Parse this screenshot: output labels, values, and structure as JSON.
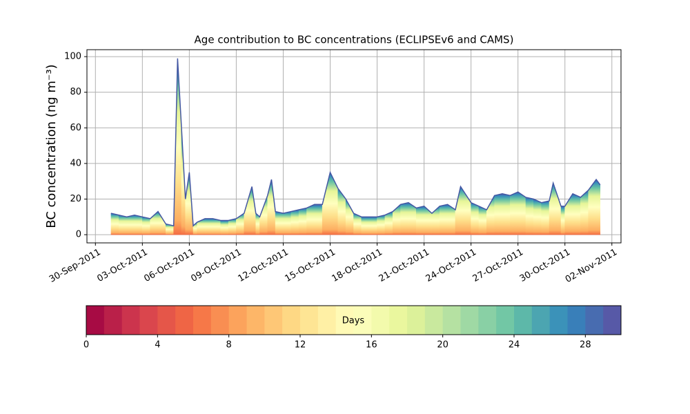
{
  "chart_data": {
    "type": "area",
    "title": "Age contribution to BC concentrations (ECLIPSEv6 and CAMS)",
    "y_label": "BC concentration (ng m⁻³)",
    "x": [
      "2011-10-01T00:00",
      "2011-10-01T12:00",
      "2011-10-02T00:00",
      "2011-10-02T12:00",
      "2011-10-03T00:00",
      "2011-10-03T12:00",
      "2011-10-04T00:00",
      "2011-10-04T12:00",
      "2011-10-05T00:00",
      "2011-10-05T06:00",
      "2011-10-05T12:00",
      "2011-10-05T18:00",
      "2011-10-06T00:00",
      "2011-10-06T06:00",
      "2011-10-06T12:00",
      "2011-10-07T00:00",
      "2011-10-07T12:00",
      "2011-10-08T00:00",
      "2011-10-08T12:00",
      "2011-10-09T00:00",
      "2011-10-09T12:00",
      "2011-10-10T00:00",
      "2011-10-10T06:00",
      "2011-10-10T12:00",
      "2011-10-11T00:00",
      "2011-10-11T06:00",
      "2011-10-11T12:00",
      "2011-10-12T00:00",
      "2011-10-12T12:00",
      "2011-10-13T00:00",
      "2011-10-13T12:00",
      "2011-10-14T00:00",
      "2011-10-14T12:00",
      "2011-10-15T00:00",
      "2011-10-15T12:00",
      "2011-10-16T00:00",
      "2011-10-16T12:00",
      "2011-10-17T00:00",
      "2011-10-17T12:00",
      "2011-10-18T00:00",
      "2011-10-18T12:00",
      "2011-10-19T00:00",
      "2011-10-19T12:00",
      "2011-10-20T00:00",
      "2011-10-20T12:00",
      "2011-10-21T00:00",
      "2011-10-21T12:00",
      "2011-10-22T00:00",
      "2011-10-22T12:00",
      "2011-10-23T00:00",
      "2011-10-23T08:00",
      "2011-10-24T00:00",
      "2011-10-24T12:00",
      "2011-10-25T00:00",
      "2011-10-25T12:00",
      "2011-10-26T00:00",
      "2011-10-26T12:00",
      "2011-10-27T00:00",
      "2011-10-27T12:00",
      "2011-10-28T00:00",
      "2011-10-28T12:00",
      "2011-10-29T00:00",
      "2011-10-29T06:00",
      "2011-10-29T18:00",
      "2011-10-30T00:00",
      "2011-10-30T12:00",
      "2011-10-31T00:00",
      "2011-10-31T12:00",
      "2011-11-01T00:00",
      "2011-11-01T06:00"
    ],
    "values": [
      12,
      11,
      10,
      11,
      10,
      9,
      13,
      6,
      5,
      99,
      60,
      20,
      35,
      5,
      7,
      9,
      9,
      8,
      8,
      9,
      12,
      27,
      12,
      10,
      22,
      31,
      13,
      12,
      13,
      14,
      15,
      17,
      17,
      35,
      26,
      20,
      12,
      10,
      10,
      10,
      11,
      13,
      17,
      18,
      15,
      16,
      12,
      16,
      17,
      14,
      27,
      18,
      16,
      14,
      22,
      23,
      22,
      24,
      21,
      20,
      18,
      19,
      29,
      16,
      16,
      23,
      21,
      25,
      31,
      28
    ],
    "line_color": "#4357a3",
    "xlim": [
      "2011-09-29T11:00",
      "2011-11-02T14:00"
    ],
    "xticks": [
      {
        "value": "2011-09-30T00:00",
        "label": "30-Sep-2011"
      },
      {
        "value": "2011-10-03T00:00",
        "label": "03-Oct-2011"
      },
      {
        "value": "2011-10-06T00:00",
        "label": "06-Oct-2011"
      },
      {
        "value": "2011-10-09T00:00",
        "label": "09-Oct-2011"
      },
      {
        "value": "2011-10-12T00:00",
        "label": "12-Oct-2011"
      },
      {
        "value": "2011-10-15T00:00",
        "label": "15-Oct-2011"
      },
      {
        "value": "2011-10-18T00:00",
        "label": "18-Oct-2011"
      },
      {
        "value": "2011-10-21T00:00",
        "label": "21-Oct-2011"
      },
      {
        "value": "2011-10-24T00:00",
        "label": "24-Oct-2011"
      },
      {
        "value": "2011-10-27T00:00",
        "label": "27-Oct-2011"
      },
      {
        "value": "2011-10-30T00:00",
        "label": "30-Oct-2011"
      },
      {
        "value": "2011-11-02T00:00",
        "label": "02-Nov-2011"
      }
    ],
    "ylim": [
      -4.6,
      103.9
    ],
    "yticks": [
      0,
      20,
      40,
      60,
      80,
      100
    ],
    "grid": true,
    "colorbar": {
      "label": "Days",
      "lim": [
        0,
        30
      ],
      "ticks": [
        0,
        4,
        8,
        12,
        16,
        20,
        24,
        28
      ],
      "colors": [
        "#9e0142",
        "#d53e4f",
        "#f46d43",
        "#fdae61",
        "#fee08b",
        "#ffffbf",
        "#e6f598",
        "#abdda4",
        "#66c2a5",
        "#3288bd",
        "#5e4fa2"
      ]
    }
  }
}
